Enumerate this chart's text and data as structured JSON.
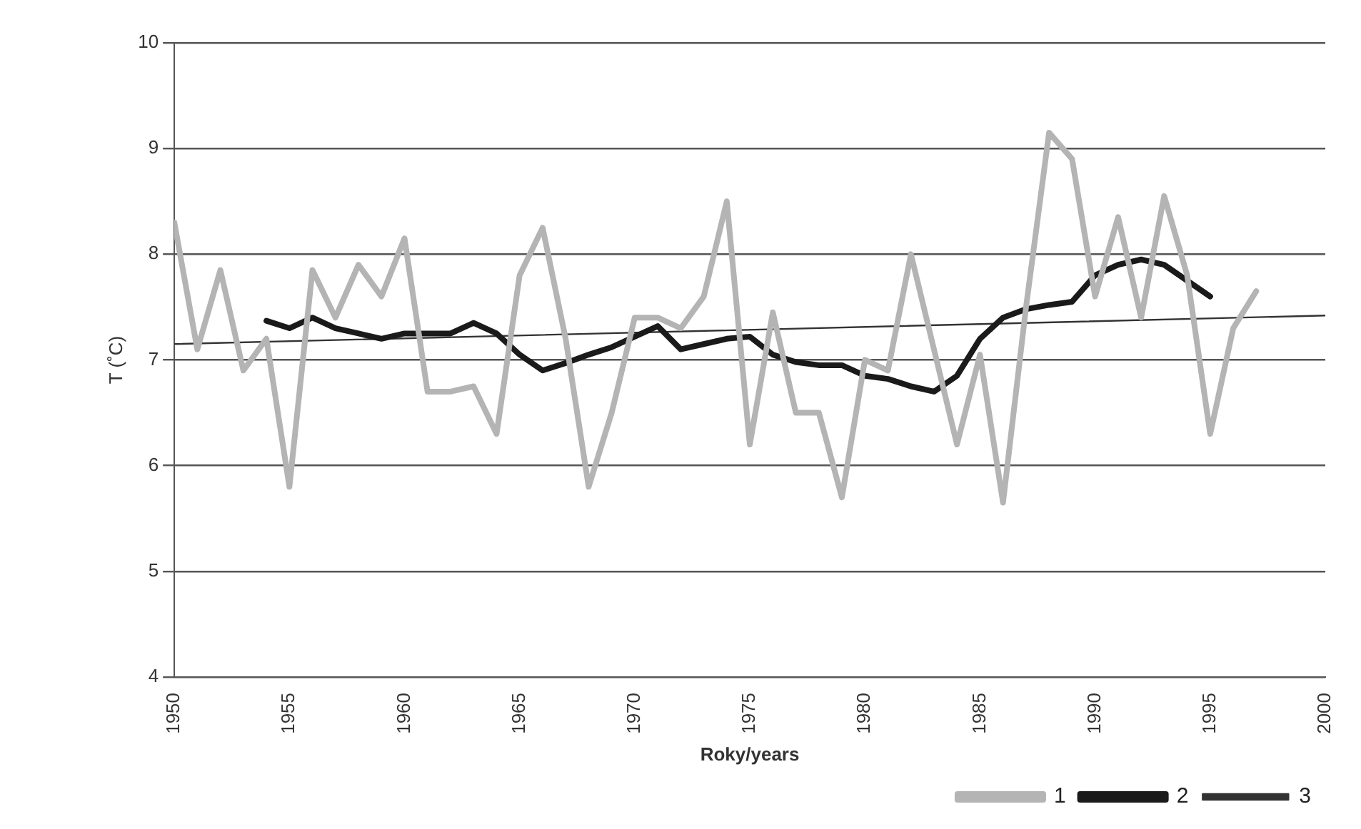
{
  "chart_data": {
    "type": "line",
    "xlabel": "Roky/years",
    "ylabel": "T (˚C)",
    "x": [
      1950,
      1951,
      1952,
      1953,
      1954,
      1955,
      1956,
      1957,
      1958,
      1959,
      1960,
      1961,
      1962,
      1963,
      1964,
      1965,
      1966,
      1967,
      1968,
      1969,
      1970,
      1971,
      1972,
      1973,
      1974,
      1975,
      1976,
      1977,
      1978,
      1979,
      1980,
      1981,
      1982,
      1983,
      1984,
      1985,
      1986,
      1987,
      1988,
      1989,
      1990,
      1991,
      1992,
      1993,
      1994,
      1995,
      1996,
      1997
    ],
    "series": [
      {
        "name": "1",
        "color": "#b4b4b4",
        "values": [
          8.3,
          7.1,
          7.85,
          6.9,
          7.2,
          5.8,
          7.85,
          7.4,
          7.9,
          7.6,
          8.15,
          6.7,
          6.7,
          6.75,
          6.3,
          7.8,
          8.25,
          7.2,
          5.8,
          6.5,
          7.4,
          7.4,
          7.3,
          7.6,
          8.5,
          6.2,
          7.45,
          6.5,
          6.5,
          5.7,
          7.0,
          6.9,
          8.0,
          7.1,
          6.2,
          7.05,
          5.65,
          7.5,
          9.15,
          8.9,
          7.6,
          8.35,
          7.4,
          8.55,
          7.8,
          6.3,
          7.3,
          7.65
        ]
      },
      {
        "name": "2",
        "color": "#1a1a1a",
        "x": [
          1954,
          1955,
          1956,
          1957,
          1958,
          1959,
          1960,
          1961,
          1962,
          1963,
          1964,
          1965,
          1966,
          1967,
          1968,
          1969,
          1970,
          1971,
          1972,
          1973,
          1974,
          1975,
          1976,
          1977,
          1978,
          1979,
          1980,
          1981,
          1982,
          1983,
          1984,
          1985,
          1986,
          1987,
          1988,
          1989,
          1990,
          1991,
          1992,
          1993,
          1994,
          1995
        ],
        "values": [
          7.37,
          7.3,
          7.4,
          7.3,
          7.25,
          7.2,
          7.25,
          7.25,
          7.25,
          7.35,
          7.25,
          7.05,
          6.9,
          6.97,
          7.05,
          7.12,
          7.22,
          7.32,
          7.1,
          7.15,
          7.2,
          7.22,
          7.05,
          6.98,
          6.95,
          6.95,
          6.85,
          6.82,
          6.75,
          6.7,
          6.85,
          7.2,
          7.4,
          7.48,
          7.52,
          7.55,
          7.8,
          7.9,
          7.95,
          7.9,
          7.75,
          7.6
        ]
      },
      {
        "name": "3",
        "color": "#333333",
        "x": [
          1950,
          2000
        ],
        "values": [
          7.15,
          7.42
        ]
      }
    ],
    "xlim": [
      1950,
      2000
    ],
    "xticks": [
      1950,
      1955,
      1960,
      1965,
      1970,
      1975,
      1980,
      1985,
      1990,
      1995,
      2000
    ],
    "ylim": [
      4,
      10
    ],
    "yticks": [
      4,
      5,
      6,
      7,
      8,
      9,
      10
    ],
    "grid": "y",
    "legend": "bottom right",
    "marker": "none",
    "line_style": "solid"
  }
}
